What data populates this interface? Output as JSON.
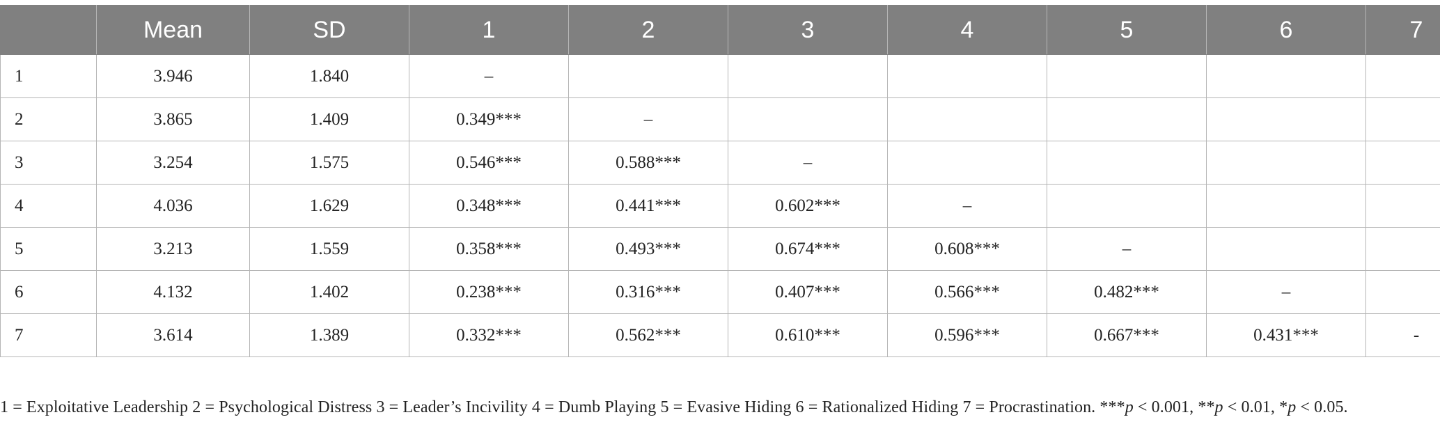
{
  "table": {
    "headers": [
      "",
      "Mean",
      "SD",
      "1",
      "2",
      "3",
      "4",
      "5",
      "6",
      "7"
    ],
    "rows": [
      [
        "1",
        "3.946",
        "1.840",
        "–",
        "",
        "",
        "",
        "",
        "",
        ""
      ],
      [
        "2",
        "3.865",
        "1.409",
        "0.349***",
        "–",
        "",
        "",
        "",
        "",
        ""
      ],
      [
        "3",
        "3.254",
        "1.575",
        "0.546***",
        "0.588***",
        "–",
        "",
        "",
        "",
        ""
      ],
      [
        "4",
        "4.036",
        "1.629",
        "0.348***",
        "0.441***",
        "0.602***",
        "–",
        "",
        "",
        ""
      ],
      [
        "5",
        "3.213",
        "1.559",
        "0.358***",
        "0.493***",
        "0.674***",
        "0.608***",
        "–",
        "",
        ""
      ],
      [
        "6",
        "4.132",
        "1.402",
        "0.238***",
        "0.316***",
        "0.407***",
        "0.566***",
        "0.482***",
        "–",
        ""
      ],
      [
        "7",
        "3.614",
        "1.389",
        "0.332***",
        "0.562***",
        "0.610***",
        "0.596***",
        "0.667***",
        "0.431***",
        "-"
      ]
    ]
  },
  "note": {
    "legend": "1 = Exploitative Leadership 2 = Psychological Distress 3 = Leader’s Incivility 4 = Dumb Playing 5 = Evasive Hiding 6 = Rationalized Hiding 7 = Procrastination. ",
    "sig1_stars": "***",
    "sig1_p": "p",
    "sig1_rest": " < 0.001, ",
    "sig2_stars": "**",
    "sig2_p": "p",
    "sig2_rest": " < 0.01, ",
    "sig3_stars": "*",
    "sig3_p": "p",
    "sig3_rest": " < 0.05."
  }
}
